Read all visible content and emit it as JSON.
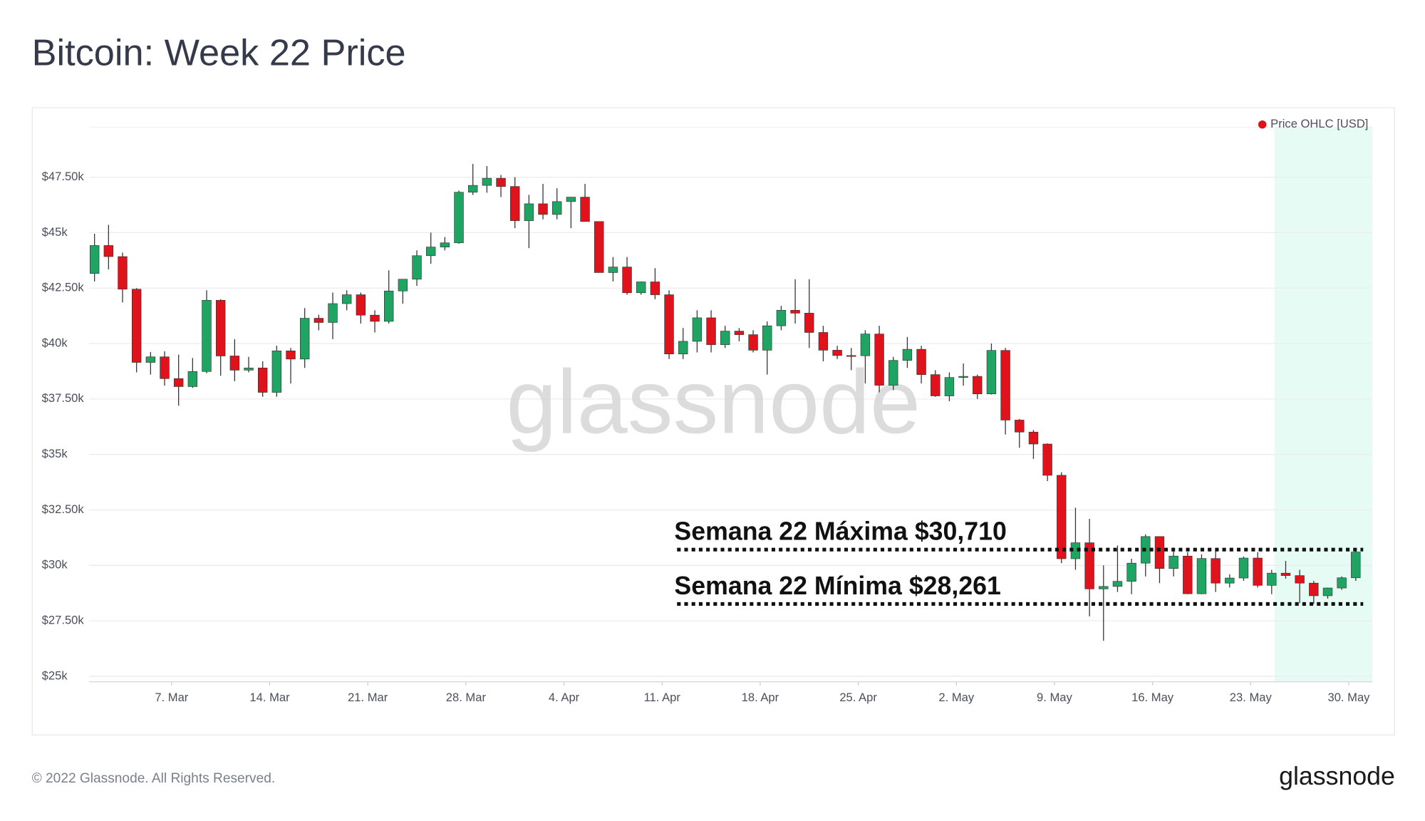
{
  "chart_data": {
    "type": "candlestick",
    "title": "Bitcoin: Week 22 Price",
    "watermark": "glassnode",
    "footer": "© 2022 Glassnode. All Rights Reserved.",
    "logo": "glassnode",
    "categories": [
      null,
      null,
      null,
      null,
      null,
      null,
      "7. Mar",
      null,
      null,
      null,
      null,
      null,
      null,
      "14. Mar",
      null,
      null,
      null,
      null,
      null,
      null,
      "21. Mar",
      null,
      null,
      null,
      null,
      null,
      null,
      "28. Mar",
      null,
      null,
      null,
      null,
      null,
      null,
      "4. Apr",
      null,
      null,
      null,
      null,
      null,
      null,
      "11. Apr",
      null,
      null,
      null,
      null,
      null,
      null,
      "18. Apr",
      null,
      null,
      null,
      null,
      null,
      null,
      "25. Apr",
      null,
      null,
      null,
      null,
      null,
      null,
      "2. May",
      null,
      null,
      null,
      null,
      null,
      null,
      "9. May",
      null,
      null,
      null,
      null,
      null,
      null,
      "16. May",
      null,
      null,
      null,
      null,
      null,
      null,
      "23. May",
      null,
      null,
      null,
      null,
      null,
      null,
      "30. May"
    ],
    "series": [
      {
        "name": "Price OHLC [USD]",
        "legend_color": "#e0121c",
        "up_color": "#1fa463",
        "down_color": "#e0121c",
        "open": [
          43160,
          44420,
          43920,
          42450,
          39150,
          39400,
          38420,
          38060,
          38740,
          41950,
          39440,
          38800,
          38900,
          37800,
          39670,
          39300,
          41140,
          40950,
          41800,
          42200,
          41280,
          41000,
          42370,
          42900,
          43960,
          44350,
          44540,
          46820,
          47130,
          47450,
          47080,
          45540,
          46300,
          45820,
          46400,
          46600,
          45500,
          43200,
          43450,
          42290,
          42780,
          42200,
          39530,
          40100,
          41160,
          39950,
          40560,
          40400,
          39700,
          40800,
          41500,
          41370,
          40500,
          39700,
          39460,
          39450,
          40430,
          38120,
          39240,
          39740,
          38600,
          37640,
          38470,
          38520,
          37730,
          39690,
          36550,
          36010,
          35470,
          34060,
          30300,
          31020,
          28940,
          29050,
          29280,
          30100,
          31300,
          29860,
          30420,
          28720,
          30310,
          29200,
          29430,
          30330,
          29100,
          29650,
          29540,
          29200,
          28630,
          28980,
          29440
        ],
        "high": [
          44950,
          45350,
          44100,
          42500,
          39620,
          39650,
          39500,
          39350,
          42400,
          42000,
          40200,
          39400,
          39200,
          39900,
          39800,
          41600,
          41300,
          42300,
          42400,
          42300,
          41500,
          43300,
          42900,
          44200,
          45000,
          44800,
          46900,
          48100,
          48000,
          47600,
          47500,
          46700,
          47200,
          47000,
          46600,
          47200,
          45500,
          43900,
          43900,
          42800,
          43400,
          42400,
          40700,
          41500,
          41500,
          40800,
          40700,
          40600,
          41000,
          41700,
          42900,
          42900,
          40800,
          39900,
          39800,
          40600,
          40800,
          39400,
          40300,
          39900,
          38800,
          38700,
          39100,
          38600,
          40000,
          39800,
          36600,
          36100,
          35500,
          34200,
          32600,
          32100,
          30000,
          30900,
          30300,
          31400,
          31300,
          30800,
          30600,
          30500,
          30700,
          29600,
          30400,
          30600,
          29800,
          30200,
          29800,
          29300,
          29000,
          29500,
          30710
        ],
        "low": [
          42800,
          43340,
          41850,
          38700,
          38600,
          38100,
          37200,
          38000,
          38660,
          38550,
          38300,
          38700,
          37600,
          37600,
          38200,
          38900,
          40600,
          40200,
          41500,
          40900,
          40500,
          40900,
          41800,
          42600,
          43600,
          44200,
          44500,
          46700,
          46800,
          46600,
          45200,
          44300,
          45600,
          45600,
          45200,
          45500,
          43200,
          42800,
          42200,
          42200,
          42000,
          39300,
          39300,
          39600,
          39600,
          39800,
          40100,
          39600,
          38600,
          40600,
          40900,
          39800,
          39200,
          39300,
          38800,
          38200,
          37800,
          37900,
          38900,
          38200,
          37600,
          37400,
          38100,
          37500,
          37700,
          35900,
          35300,
          34800,
          33800,
          30100,
          29800,
          27700,
          26600,
          28800,
          28700,
          29500,
          29200,
          29500,
          28700,
          28700,
          28800,
          29000,
          29300,
          29000,
          28700,
          29400,
          28300,
          28261,
          28500,
          28900,
          29300
        ],
        "close": [
          44420,
          43920,
          42450,
          39150,
          39400,
          38420,
          38060,
          38740,
          41950,
          39440,
          38800,
          38900,
          37800,
          39670,
          39300,
          41140,
          40950,
          41800,
          42200,
          41280,
          41000,
          42370,
          42900,
          43960,
          44350,
          44540,
          46820,
          47130,
          47450,
          47080,
          45540,
          46300,
          45820,
          46400,
          46600,
          45500,
          43200,
          43450,
          42290,
          42780,
          42200,
          39530,
          40100,
          41160,
          39950,
          40560,
          40400,
          39700,
          40800,
          41500,
          41370,
          40500,
          39700,
          39460,
          39450,
          40430,
          38120,
          39240,
          39740,
          38600,
          37640,
          38470,
          38520,
          37730,
          39690,
          36550,
          36010,
          35470,
          34060,
          30300,
          31020,
          28940,
          29050,
          29280,
          30100,
          31300,
          29860,
          30420,
          28720,
          30310,
          29200,
          29430,
          30330,
          29100,
          29650,
          29540,
          29200,
          28630,
          28980,
          29440,
          30600
        ]
      }
    ],
    "ylim": [
      25000,
      49750
    ],
    "yticks": [
      {
        "value": 25000,
        "label": "$25k"
      },
      {
        "value": 27500,
        "label": "$27.50k"
      },
      {
        "value": 30000,
        "label": "$30k"
      },
      {
        "value": 32500,
        "label": "$32.50k"
      },
      {
        "value": 35000,
        "label": "$35k"
      },
      {
        "value": 37500,
        "label": "$37.50k"
      },
      {
        "value": 40000,
        "label": "$40k"
      },
      {
        "value": 42500,
        "label": "$42.50k"
      },
      {
        "value": 45000,
        "label": "$45k"
      },
      {
        "value": 47500,
        "label": "$47.50k"
      }
    ],
    "grid": true,
    "legend_position": "top-right",
    "highlight_from": "23. May",
    "highlight_color": "#e6fbf4",
    "hlines": [
      {
        "value": 30710,
        "label": "Semana 22 Máxima $30,710"
      },
      {
        "value": 28261,
        "label": "Semana 22 Mínima $28,261"
      }
    ]
  }
}
